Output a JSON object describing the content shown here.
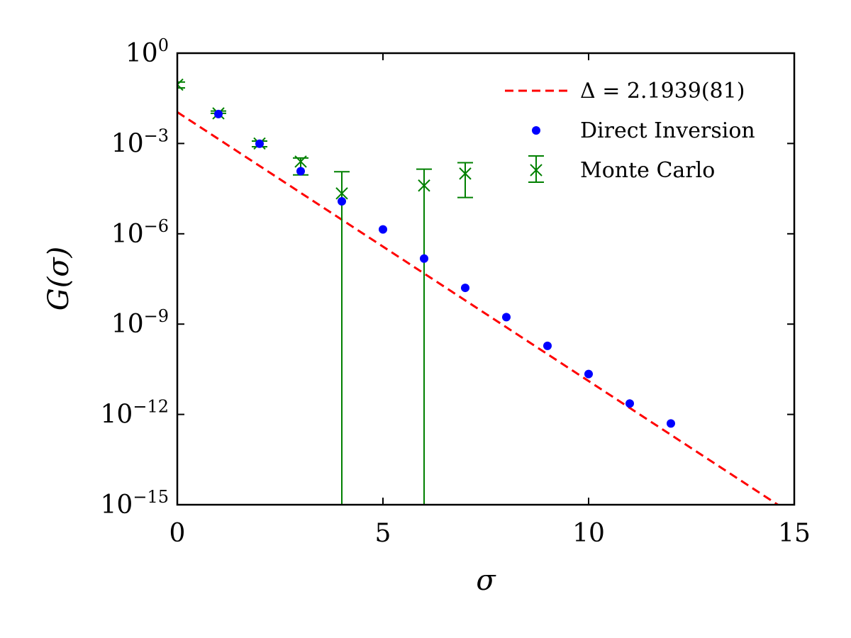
{
  "chart_data": {
    "type": "scatter",
    "xlabel": "σ",
    "ylabel": "G(σ)",
    "xlim": [
      0,
      15
    ],
    "ylim": [
      1e-15,
      1
    ],
    "yscale": "log",
    "grid": false,
    "legend_position": "top-right",
    "x_ticks": [
      0,
      5,
      10,
      15
    ],
    "x_tick_labels": [
      "0",
      "5",
      "10",
      "15"
    ],
    "y_ticks": [
      {
        "base": "10",
        "exp": "0",
        "value": 1
      },
      {
        "base": "10",
        "exp": "−3",
        "value": 0.001
      },
      {
        "base": "10",
        "exp": "−6",
        "value": 1e-06
      },
      {
        "base": "10",
        "exp": "−9",
        "value": 1e-09
      },
      {
        "base": "10",
        "exp": "−12",
        "value": 1e-12
      },
      {
        "base": "10",
        "exp": "−15",
        "value": 1e-15
      }
    ],
    "series": [
      {
        "name": "Δ = 2.1939(81)",
        "kind": "line",
        "style": "dashed",
        "color": "#ff0000",
        "x": [
          0,
          14.6
        ],
        "y": [
          0.011,
          1e-15
        ]
      },
      {
        "name": "Direct Inversion",
        "kind": "scatter",
        "marker": "dot",
        "color": "#0000ff",
        "x": [
          1,
          2,
          3,
          4,
          5,
          6,
          7,
          8,
          9,
          10,
          11,
          12
        ],
        "y": [
          0.0095,
          0.00098,
          0.00012,
          1.2e-05,
          1.4e-06,
          1.5e-07,
          1.6e-08,
          1.7e-09,
          1.9e-10,
          2.2e-11,
          2.3e-12,
          5e-13
        ]
      },
      {
        "name": "Monte Carlo",
        "kind": "errorbar",
        "marker": "x",
        "color": "#008000",
        "x": [
          0,
          1,
          2,
          3,
          4,
          6,
          7
        ],
        "y": [
          0.09,
          0.01,
          0.001,
          0.00025,
          2.2e-05,
          4e-05,
          0.0001
        ],
        "yerr_low": [
          0.07,
          0.01,
          0.00078,
          9e-05,
          1e-15,
          1e-15,
          1.6e-05
        ],
        "yerr_high": [
          0.11,
          0.012,
          0.0012,
          0.00033,
          0.000115,
          0.00014,
          0.00023
        ]
      }
    ]
  }
}
